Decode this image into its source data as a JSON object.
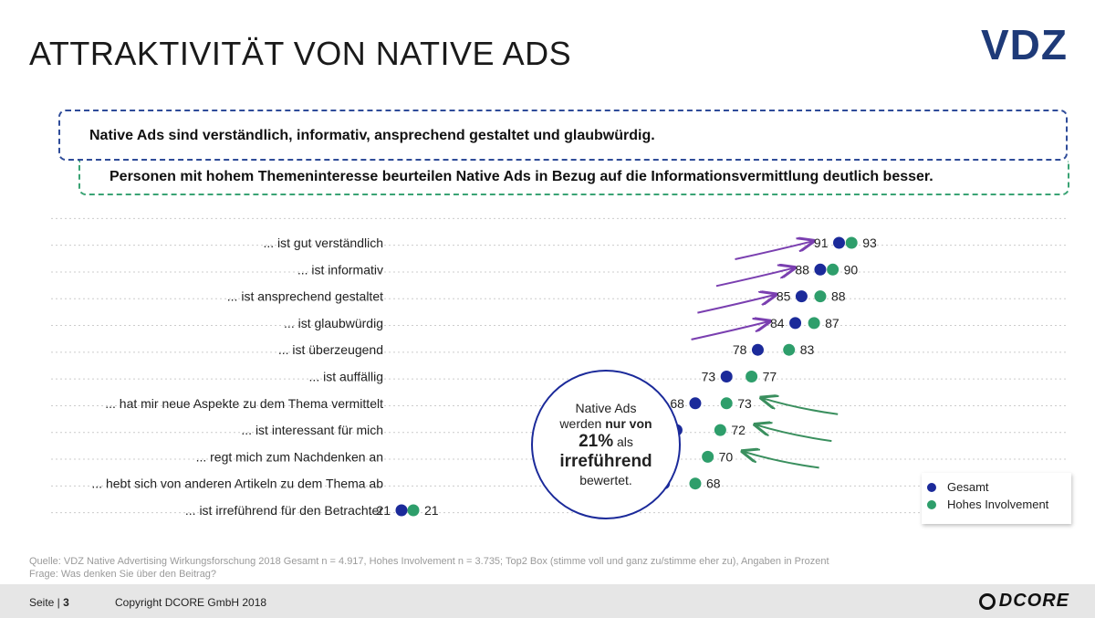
{
  "header": {
    "title": "ATTRAKTIVITÄT VON NATIVE ADS",
    "logo": "VDZ"
  },
  "statements": {
    "primary": "Native Ads sind verständlich, informativ, ansprechend gestaltet und glaubwürdig.",
    "secondary": "Personen mit hohem Themeninteresse beurteilen Native Ads in Bezug auf die Informationsvermittlung deutlich besser."
  },
  "callout": {
    "line1": "Native Ads",
    "line2_pre": "werden ",
    "line2_bold": "nur von",
    "line3_bold": "21%",
    "line3_post": " als",
    "line4_bold": "irreführend",
    "line5": "bewertet."
  },
  "chart_data": {
    "type": "scatter",
    "categories": [
      "... ist gut verständlich",
      "... ist informativ",
      "... ist ansprechend gestaltet",
      "... ist glaubwürdig",
      "... ist überzeugend",
      "... ist auffällig",
      "... hat mir neue Aspekte zu dem Thema vermittelt",
      "... ist interessant für mich",
      "... regt mich zum Nachdenken an",
      "... hebt sich von anderen Artikeln zu dem Thema ab",
      "... ist irreführend für den Betrachter"
    ],
    "series": [
      {
        "name": "Gesamt",
        "color": "#1b2a9a",
        "values": [
          91,
          88,
          85,
          84,
          78,
          73,
          68,
          65,
          64,
          63,
          21
        ]
      },
      {
        "name": "Hohes Involvement",
        "color": "#2e9e6b",
        "values": [
          93,
          90,
          88,
          87,
          83,
          77,
          73,
          72,
          70,
          68,
          21
        ]
      }
    ],
    "arrows_up_color": "#7a3fb0",
    "arrows_down_color": "#3a8f5e",
    "legend_position": "bottom-right"
  },
  "source": {
    "line1": "Quelle: VDZ Native Advertising Wirkungsforschung 2018 Gesamt n = 4.917, Hohes Involvement n = 3.735; Top2 Box (stimme voll und ganz zu/stimme eher zu), Angaben in Prozent",
    "line2": "Frage: Was denken Sie über den Beitrag?"
  },
  "footer": {
    "page_label": "Seite |",
    "page_number": "3",
    "copyright": "Copyright DCORE GmbH 2018",
    "brand": "DCORE"
  }
}
